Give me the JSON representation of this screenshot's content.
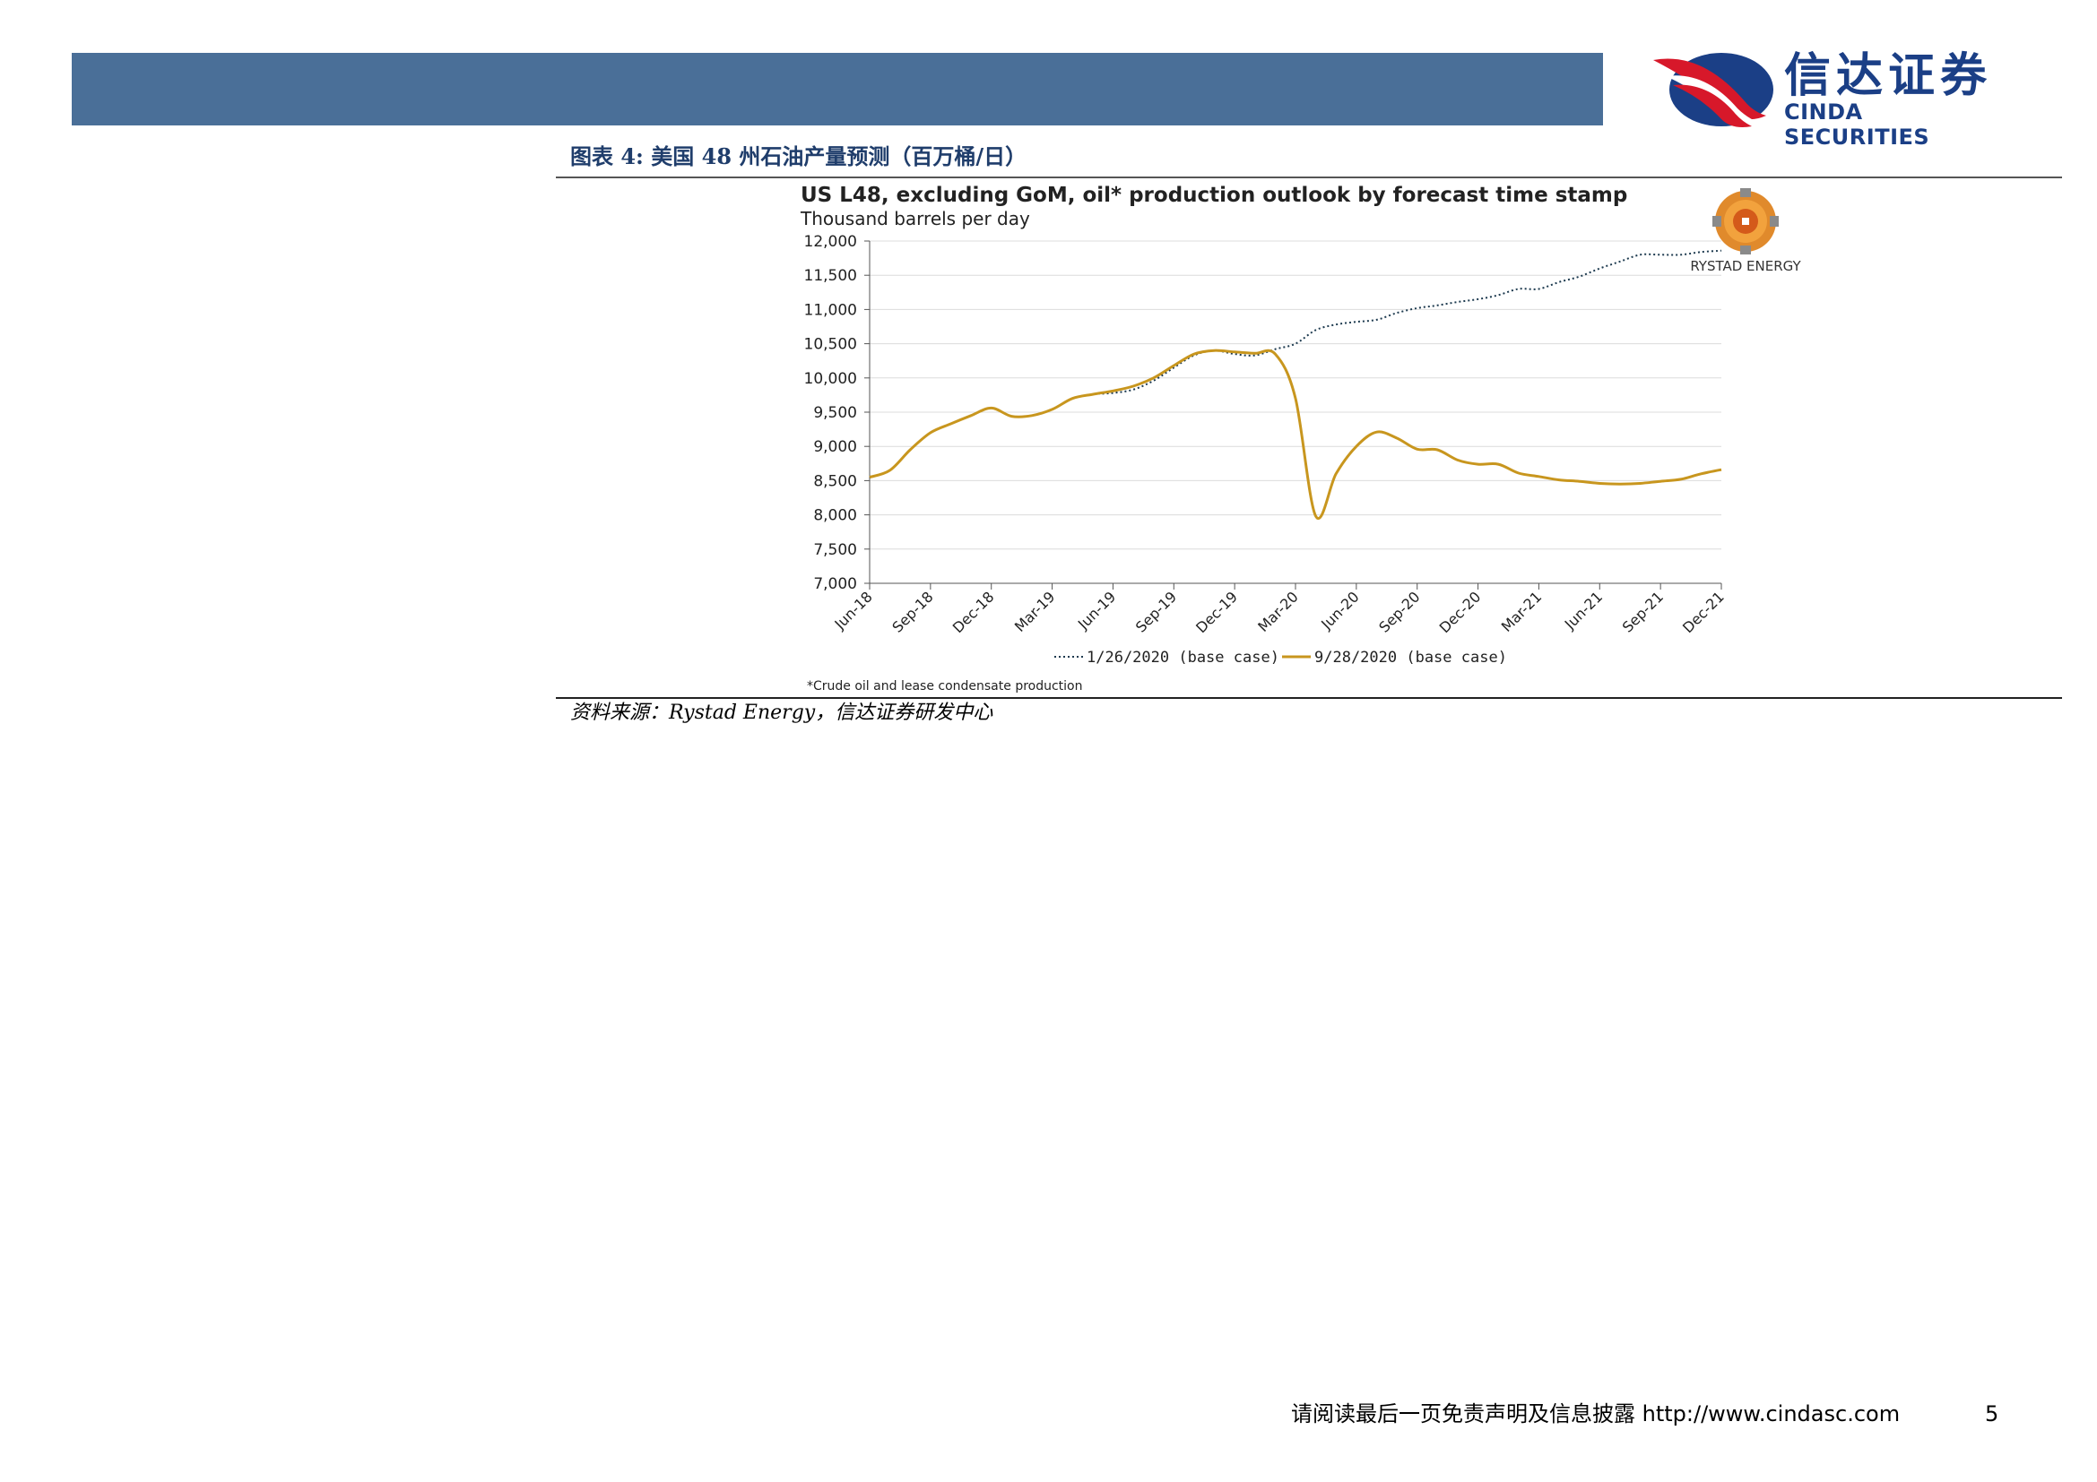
{
  "header": {
    "logo_zh": "信达证券",
    "logo_en": "CINDA SECURITIES",
    "brand_color": "#1b3f86",
    "logo_red": "#d7182a",
    "bar_color": "#4a6f98"
  },
  "figure": {
    "caption": "图表 4:  美国 48 州石油产量预测（百万桶/日）",
    "source": "资料来源：Rystad Energy，信达证券研发中心"
  },
  "chart_data": {
    "type": "line",
    "title": "US L48, excluding GoM, oil* production outlook by forecast time stamp",
    "subtitle": "Thousand barrels per day",
    "footnote": "*Crude oil and lease condensate production",
    "watermark": "RYSTAD ENERGY",
    "ylim": [
      7000,
      12000
    ],
    "yticks": [
      7000,
      7500,
      8000,
      8500,
      9000,
      9500,
      10000,
      10500,
      11000,
      11500,
      12000
    ],
    "ytick_labels": [
      "7,000",
      "7,500",
      "8,000",
      "8,500",
      "9,000",
      "9,500",
      "10,000",
      "10,500",
      "11,000",
      "11,500",
      "12,000"
    ],
    "x_ticks": [
      "Jun-18",
      "Sep-18",
      "Dec-18",
      "Mar-19",
      "Jun-19",
      "Sep-19",
      "Dec-19",
      "Mar-20",
      "Jun-20",
      "Sep-20",
      "Dec-20",
      "Mar-21",
      "Jun-21",
      "Sep-21",
      "Dec-21"
    ],
    "x": [
      "Jun-18",
      "Jul-18",
      "Aug-18",
      "Sep-18",
      "Oct-18",
      "Nov-18",
      "Dec-18",
      "Jan-19",
      "Feb-19",
      "Mar-19",
      "Apr-19",
      "May-19",
      "Jun-19",
      "Jul-19",
      "Aug-19",
      "Sep-19",
      "Oct-19",
      "Nov-19",
      "Dec-19",
      "Jan-20",
      "Feb-20",
      "Mar-20",
      "Apr-20",
      "May-20",
      "Jun-20",
      "Jul-20",
      "Aug-20",
      "Sep-20",
      "Oct-20",
      "Nov-20",
      "Dec-20",
      "Jan-21",
      "Feb-21",
      "Mar-21",
      "Apr-21",
      "May-21",
      "Jun-21",
      "Jul-21",
      "Aug-21",
      "Sep-21",
      "Oct-21",
      "Nov-21",
      "Dec-21"
    ],
    "grid": true,
    "legend_position": "bottom",
    "series": [
      {
        "name": "1/26/2020 (base case)",
        "color": "#1d3a4f",
        "style": "dotted",
        "values": [
          8550,
          8650,
          8950,
          9200,
          9330,
          9450,
          9560,
          9440,
          9450,
          9540,
          9700,
          9760,
          9780,
          9830,
          9960,
          10150,
          10330,
          10400,
          10350,
          10330,
          10420,
          10500,
          10700,
          10780,
          10820,
          10850,
          10950,
          11020,
          11060,
          11110,
          11150,
          11210,
          11300,
          11300,
          11400,
          11480,
          11600,
          11700,
          11800,
          11800,
          11800,
          11840,
          11860
        ]
      },
      {
        "name": "9/28/2020 (base case)",
        "color": "#c8961e",
        "style": "solid",
        "values": [
          8550,
          8650,
          8950,
          9200,
          9330,
          9450,
          9560,
          9440,
          9450,
          9540,
          9700,
          9760,
          9810,
          9880,
          10000,
          10180,
          10350,
          10400,
          10380,
          10360,
          10350,
          9700,
          7980,
          8600,
          9000,
          9210,
          9120,
          8960,
          8950,
          8800,
          8740,
          8740,
          8610,
          8560,
          8510,
          8490,
          8460,
          8450,
          8460,
          8490,
          8520,
          8600,
          8660
        ]
      }
    ]
  },
  "footer": {
    "notice": "请阅读最后一页免责声明及信息披露",
    "url": "http://www.cindasc.com",
    "page": "5"
  }
}
